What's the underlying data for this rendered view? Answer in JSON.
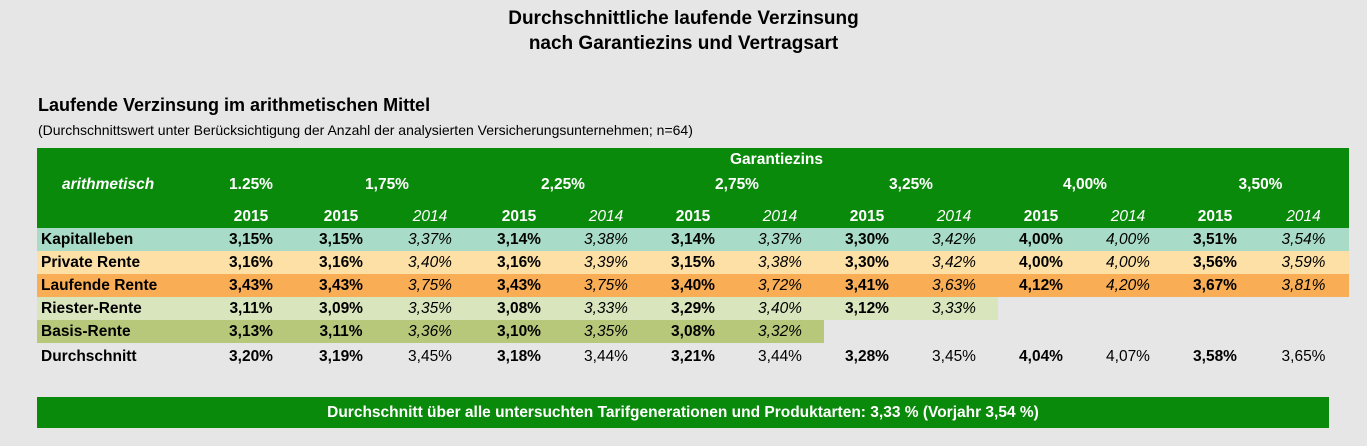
{
  "title_line1": "Durchschnittliche laufende Verzinsung",
  "title_line2": "nach Garantiezins und Vertragsart",
  "subtitle": "Laufende Verzinsung im arithmetischen Mittel",
  "note": "(Durchschnittswert unter Berücksichtigung der Anzahl der analysierten Versicherungsunternehmen; n=64)",
  "header": {
    "group": "Garantiezins",
    "row_label": "arithmetisch",
    "rates": [
      "1.25%",
      "1,75%",
      "2,25%",
      "2,75%",
      "3,25%",
      "4,00%",
      "3,50%"
    ],
    "year_current": "2015",
    "year_previous": "2014"
  },
  "rows": [
    {
      "label": "Kapitalleben",
      "v": [
        "3,15%",
        "3,15%",
        "3,37%",
        "3,14%",
        "3,38%",
        "3,14%",
        "3,37%",
        "3,30%",
        "3,42%",
        "4,00%",
        "4,00%",
        "3,51%",
        "3,54%"
      ]
    },
    {
      "label": "Private Rente",
      "v": [
        "3,16%",
        "3,16%",
        "3,40%",
        "3,16%",
        "3,39%",
        "3,15%",
        "3,38%",
        "3,30%",
        "3,42%",
        "4,00%",
        "4,00%",
        "3,56%",
        "3,59%"
      ]
    },
    {
      "label": "Laufende Rente",
      "v": [
        "3,43%",
        "3,43%",
        "3,75%",
        "3,43%",
        "3,75%",
        "3,40%",
        "3,72%",
        "3,41%",
        "3,63%",
        "4,12%",
        "4,20%",
        "3,67%",
        "3,81%"
      ]
    },
    {
      "label": "Riester-Rente",
      "v": [
        "3,11%",
        "3,09%",
        "3,35%",
        "3,08%",
        "3,33%",
        "3,29%",
        "3,40%",
        "3,12%",
        "3,33%",
        "",
        "",
        "",
        ""
      ]
    },
    {
      "label": "Basis-Rente",
      "v": [
        "3,13%",
        "3,11%",
        "3,36%",
        "3,10%",
        "3,35%",
        "3,08%",
        "3,32%",
        "",
        "",
        "",
        "",
        "",
        ""
      ]
    },
    {
      "label": "Durchschnitt",
      "v": [
        "3,20%",
        "3,19%",
        "3,45%",
        "3,18%",
        "3,44%",
        "3,21%",
        "3,44%",
        "3,28%",
        "3,45%",
        "4,04%",
        "4,07%",
        "3,58%",
        "3,65%"
      ]
    }
  ],
  "footer": "Durchschnitt über alle untersuchten Tarifgenerationen und Produktarten: 3,33 % (Vorjahr 3,54 %)",
  "colors": {
    "header_green": "#0a8a0a",
    "kapitalleben": "#a8dcc8",
    "private_rente": "#fde0a6",
    "laufende_rente": "#f9ae56",
    "riester_rente": "#d9e5bd",
    "basis_rente": "#b8c87b"
  },
  "chart_data": {
    "type": "table",
    "title": "Durchschnittliche laufende Verzinsung nach Garantiezins und Vertragsart",
    "columns": [
      "1.25% 2015",
      "1,75% 2015",
      "1,75% 2014",
      "2,25% 2015",
      "2,25% 2014",
      "2,75% 2015",
      "2,75% 2014",
      "3,25% 2015",
      "3,25% 2014",
      "4,00% 2015",
      "4,00% 2014",
      "3,50% 2015",
      "3,50% 2014"
    ],
    "series": [
      {
        "name": "Kapitalleben",
        "values": [
          3.15,
          3.15,
          3.37,
          3.14,
          3.38,
          3.14,
          3.37,
          3.3,
          3.42,
          4.0,
          4.0,
          3.51,
          3.54
        ]
      },
      {
        "name": "Private Rente",
        "values": [
          3.16,
          3.16,
          3.4,
          3.16,
          3.39,
          3.15,
          3.38,
          3.3,
          3.42,
          4.0,
          4.0,
          3.56,
          3.59
        ]
      },
      {
        "name": "Laufende Rente",
        "values": [
          3.43,
          3.43,
          3.75,
          3.43,
          3.75,
          3.4,
          3.72,
          3.41,
          3.63,
          4.12,
          4.2,
          3.67,
          3.81
        ]
      },
      {
        "name": "Riester-Rente",
        "values": [
          3.11,
          3.09,
          3.35,
          3.08,
          3.33,
          3.29,
          3.4,
          3.12,
          3.33,
          null,
          null,
          null,
          null
        ]
      },
      {
        "name": "Basis-Rente",
        "values": [
          3.13,
          3.11,
          3.36,
          3.1,
          3.35,
          3.08,
          3.32,
          null,
          null,
          null,
          null,
          null,
          null
        ]
      },
      {
        "name": "Durchschnitt",
        "values": [
          3.2,
          3.19,
          3.45,
          3.18,
          3.44,
          3.21,
          3.44,
          3.28,
          3.45,
          4.04,
          4.07,
          3.58,
          3.65
        ]
      }
    ]
  }
}
